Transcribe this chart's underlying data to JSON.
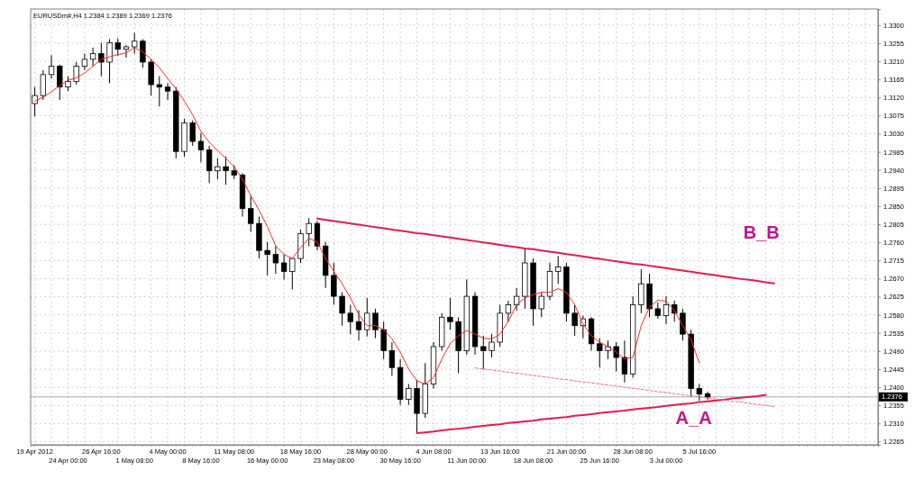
{
  "chart_data": {
    "type": "candlestick",
    "title": "EURUSDm#,H4  1.2384 1.2389 1.2369 1.2376",
    "categories": [
      "19 Apr 2012",
      null,
      null,
      null,
      "24 Apr 00:00",
      null,
      null,
      null,
      "26 Apr 16:00",
      null,
      null,
      null,
      "1 May 08:00",
      null,
      null,
      null,
      "4 May 00:00",
      null,
      null,
      null,
      "8 May 16:00",
      null,
      null,
      null,
      "11 May 08:00",
      null,
      null,
      null,
      "16 May 00:00",
      null,
      null,
      null,
      "18 May 16:00",
      null,
      null,
      null,
      "23 May 08:00",
      null,
      null,
      null,
      "28 May 00:00",
      null,
      null,
      null,
      "30 May 16:00",
      null,
      null,
      null,
      "4 Jun 08:00",
      null,
      null,
      null,
      "11 Jun 00:00",
      null,
      null,
      null,
      "13 Jun 16:00",
      null,
      null,
      null,
      "18 Jun 08:00",
      null,
      null,
      null,
      "21 Jun 00:00",
      null,
      null,
      null,
      "25 Jun 16:00",
      null,
      null,
      null,
      "28 Jun 08:00",
      null,
      null,
      null,
      "3 Jul 00:00",
      null,
      null,
      null,
      "5 Jul 16:00",
      null,
      null,
      null,
      null,
      null,
      null,
      null,
      null,
      null,
      null,
      null,
      null,
      null,
      null,
      null,
      null,
      null,
      null,
      null,
      null,
      null
    ],
    "ohlc": [
      [
        1.3105,
        1.3146,
        1.3073,
        1.3125
      ],
      [
        1.3125,
        1.3188,
        1.3114,
        1.3177
      ],
      [
        1.3177,
        1.3225,
        1.3167,
        1.3198
      ],
      [
        1.3198,
        1.3202,
        1.3114,
        1.3146
      ],
      [
        1.3146,
        1.3173,
        1.3136,
        1.316
      ],
      [
        1.316,
        1.3208,
        1.3152,
        1.3198
      ],
      [
        1.3198,
        1.3229,
        1.3188,
        1.3215
      ],
      [
        1.3215,
        1.3244,
        1.3198,
        1.3229
      ],
      [
        1.3229,
        1.3256,
        1.3173,
        1.3208
      ],
      [
        1.3208,
        1.3265,
        1.3156,
        1.3256
      ],
      [
        1.3256,
        1.3267,
        1.3223,
        1.324
      ],
      [
        1.324,
        1.325,
        1.3219,
        1.3246
      ],
      [
        1.3246,
        1.3281,
        1.3229,
        1.326
      ],
      [
        1.326,
        1.3265,
        1.3194,
        1.3208
      ],
      [
        1.3208,
        1.3215,
        1.3125,
        1.3152
      ],
      [
        1.3152,
        1.3173,
        1.3098,
        1.3146
      ],
      [
        1.3146,
        1.3156,
        1.3114,
        1.3136
      ],
      [
        1.3136,
        1.3146,
        1.2969,
        1.2986
      ],
      [
        1.2986,
        1.3067,
        1.2973,
        1.3057
      ],
      [
        1.3057,
        1.3063,
        1.3,
        1.3011
      ],
      [
        1.3011,
        1.3032,
        1.2959,
        1.299
      ],
      [
        1.299,
        1.3,
        1.2907,
        1.2938
      ],
      [
        1.2938,
        1.2969,
        1.2917,
        1.2948
      ],
      [
        1.2948,
        1.2973,
        1.2903,
        1.2938
      ],
      [
        1.2938,
        1.2952,
        1.2917,
        1.2927
      ],
      [
        1.2927,
        1.2932,
        1.2824,
        1.2844
      ],
      [
        1.2844,
        1.2876,
        1.2786,
        1.2807
      ],
      [
        1.2807,
        1.2824,
        1.272,
        1.274
      ],
      [
        1.274,
        1.2761,
        1.2678,
        1.273
      ],
      [
        1.273,
        1.2751,
        1.2682,
        1.2709
      ],
      [
        1.2709,
        1.273,
        1.2668,
        1.2688
      ],
      [
        1.2688,
        1.272,
        1.2643,
        1.272
      ],
      [
        1.272,
        1.2792,
        1.2709,
        1.2782
      ],
      [
        1.2782,
        1.282,
        1.2751,
        1.2807
      ],
      [
        1.2807,
        1.2813,
        1.274,
        1.2751
      ],
      [
        1.2751,
        1.2761,
        1.2647,
        1.2678
      ],
      [
        1.2678,
        1.2709,
        1.2605,
        1.2626
      ],
      [
        1.2626,
        1.2636,
        1.2553,
        1.2584
      ],
      [
        1.2584,
        1.2605,
        1.2532,
        1.2563
      ],
      [
        1.2563,
        1.2591,
        1.2516,
        1.2543
      ],
      [
        1.2543,
        1.2622,
        1.2526,
        1.2584
      ],
      [
        1.2584,
        1.2595,
        1.2522,
        1.2543
      ],
      [
        1.2543,
        1.2563,
        1.247,
        1.2491
      ],
      [
        1.2491,
        1.2512,
        1.2428,
        1.2449
      ],
      [
        1.2449,
        1.247,
        1.2356,
        1.237
      ],
      [
        1.237,
        1.2408,
        1.2356,
        1.2397
      ],
      [
        1.2397,
        1.2418,
        1.2287,
        1.2335
      ],
      [
        1.2335,
        1.246,
        1.2324,
        1.2408
      ],
      [
        1.2408,
        1.2512,
        1.2397,
        1.2501
      ],
      [
        1.2501,
        1.2584,
        1.2491,
        1.2574
      ],
      [
        1.2574,
        1.2622,
        1.2543,
        1.2563
      ],
      [
        1.2563,
        1.2574,
        1.2435,
        1.2491
      ],
      [
        1.2491,
        1.2668,
        1.2481,
        1.2626
      ],
      [
        1.2626,
        1.2636,
        1.2481,
        1.2501
      ],
      [
        1.2501,
        1.2528,
        1.2445,
        1.2491
      ],
      [
        1.2491,
        1.2532,
        1.2474,
        1.2512
      ],
      [
        1.2512,
        1.2605,
        1.2501,
        1.2584
      ],
      [
        1.2584,
        1.2615,
        1.2563,
        1.2605
      ],
      [
        1.2605,
        1.2647,
        1.2591,
        1.2626
      ],
      [
        1.2626,
        1.2747,
        1.2595,
        1.2709
      ],
      [
        1.2709,
        1.272,
        1.2553,
        1.2595
      ],
      [
        1.2595,
        1.2636,
        1.2574,
        1.2626
      ],
      [
        1.2626,
        1.2709,
        1.2616,
        1.2688
      ],
      [
        1.2688,
        1.2726,
        1.2657,
        1.2699
      ],
      [
        1.2699,
        1.2709,
        1.2563,
        1.2584
      ],
      [
        1.2584,
        1.2605,
        1.2528,
        1.2553
      ],
      [
        1.2553,
        1.2578,
        1.2522,
        1.257
      ],
      [
        1.257,
        1.2574,
        1.2491,
        1.2508
      ],
      [
        1.2508,
        1.2522,
        1.2449,
        1.2491
      ],
      [
        1.2491,
        1.2516,
        1.247,
        1.2501
      ],
      [
        1.2501,
        1.2512,
        1.2439,
        1.2474
      ],
      [
        1.2474,
        1.2516,
        1.2412,
        1.2433
      ],
      [
        1.2433,
        1.2626,
        1.2424,
        1.2605
      ],
      [
        1.2605,
        1.2693,
        1.2584,
        1.2657
      ],
      [
        1.2657,
        1.2682,
        1.2574,
        1.2595
      ],
      [
        1.2595,
        1.2611,
        1.257,
        1.2578
      ],
      [
        1.2578,
        1.2626,
        1.2557,
        1.2605
      ],
      [
        1.2605,
        1.2615,
        1.2563,
        1.2584
      ],
      [
        1.2584,
        1.2595,
        1.2516,
        1.2532
      ],
      [
        1.2532,
        1.2543,
        1.2376,
        1.2397
      ],
      [
        1.2397,
        1.2408,
        1.2366,
        1.2383
      ],
      [
        1.2384,
        1.2389,
        1.2369,
        1.2376
      ],
      null,
      null,
      null,
      null,
      null,
      null,
      null,
      null,
      null,
      null,
      null,
      null,
      null,
      null,
      null,
      null,
      null,
      null,
      null,
      null
    ],
    "series": [
      {
        "type": "line",
        "color": "#ff2a2a",
        "values": [
          1.3111,
          1.3121,
          1.3134,
          1.315,
          1.3163,
          1.3169,
          1.3181,
          1.3198,
          1.3215,
          1.3221,
          1.3227,
          1.3231,
          1.3244,
          1.3233,
          1.3215,
          1.3194,
          1.3167,
          1.3142,
          1.3111,
          1.3077,
          1.3036,
          1.3009,
          1.2988,
          1.2969,
          1.2948,
          1.2917,
          1.2876,
          1.284,
          1.2799,
          1.2751,
          1.273,
          1.272,
          1.2747,
          1.277,
          1.2761,
          1.272,
          1.2688,
          1.2657,
          1.2622,
          1.258,
          1.2553,
          1.2553,
          1.2543,
          1.252,
          1.2487,
          1.2445,
          1.2416,
          1.2408,
          1.2424,
          1.247,
          1.2508,
          1.2528,
          1.2541,
          1.2532,
          1.2522,
          1.252,
          1.2532,
          1.2564,
          1.2605,
          1.2622,
          1.263,
          1.2636,
          1.2636,
          1.2645,
          1.2636,
          1.2605,
          1.2557,
          1.2528,
          1.2512,
          1.2501,
          1.2487,
          1.247,
          1.2474,
          1.2553,
          1.2599,
          1.2616,
          1.2614,
          1.2591,
          1.2553,
          1.2518,
          1.246,
          null,
          null,
          null,
          null,
          null,
          null,
          null,
          null,
          null,
          null,
          null,
          null,
          null,
          null,
          null,
          null,
          null,
          null,
          null,
          null,
          null
        ]
      },
      {
        "type": "line",
        "color": "#e8194a",
        "values": [
          null,
          null,
          null,
          null,
          null,
          null,
          null,
          null,
          null,
          null,
          null,
          null,
          null,
          null,
          null,
          null,
          null,
          null,
          null,
          null,
          null,
          null,
          null,
          null,
          null,
          null,
          null,
          null,
          null,
          null,
          null,
          null,
          null,
          null,
          1.2819,
          1.2816,
          1.2813,
          1.281,
          1.2807,
          1.2804,
          1.2801,
          1.2798,
          1.2795,
          1.2792,
          1.2789,
          1.2786,
          1.2783,
          1.2781,
          1.2778,
          1.2775,
          1.2772,
          1.2769,
          1.2766,
          1.2763,
          1.276,
          1.2757,
          1.2754,
          1.2751,
          1.2748,
          1.2745,
          1.2743,
          1.274,
          1.2737,
          1.2734,
          1.2731,
          1.2728,
          1.2725,
          1.2722,
          1.2719,
          1.2716,
          1.2713,
          1.271,
          1.2707,
          1.2705,
          1.2702,
          1.2699,
          1.2696,
          1.2693,
          1.269,
          1.2687,
          1.2684,
          1.2681,
          1.2678,
          1.2675,
          1.2672,
          1.2669,
          1.2667,
          1.2664,
          1.2661,
          1.2658,
          null,
          null,
          null,
          null,
          null,
          null,
          null,
          null,
          null,
          null,
          null,
          null
        ]
      },
      {
        "type": "line",
        "color": "#e8194a",
        "values": [
          null,
          null,
          null,
          null,
          null,
          null,
          null,
          null,
          null,
          null,
          null,
          null,
          null,
          null,
          null,
          null,
          null,
          null,
          null,
          null,
          null,
          null,
          null,
          null,
          null,
          null,
          null,
          null,
          null,
          null,
          null,
          null,
          null,
          null,
          null,
          null,
          null,
          null,
          null,
          null,
          null,
          null,
          null,
          null,
          null,
          null,
          1.2286,
          1.2288,
          1.229,
          1.2293,
          1.2295,
          1.2297,
          1.2299,
          1.2302,
          1.2304,
          1.2306,
          1.2308,
          1.2311,
          1.2313,
          1.2315,
          1.2317,
          1.232,
          1.2322,
          1.2324,
          1.2326,
          1.2329,
          1.2331,
          1.2333,
          1.2336,
          1.2338,
          1.234,
          1.2342,
          1.2345,
          1.2347,
          1.2349,
          1.2351,
          1.2354,
          1.2356,
          1.2358,
          1.236,
          1.2363,
          1.2365,
          1.2367,
          1.2369,
          1.2372,
          1.2374,
          1.2376,
          1.2378,
          1.2381,
          null,
          null,
          null,
          null,
          null,
          null,
          null,
          null,
          null,
          null,
          null,
          null,
          null
        ]
      },
      {
        "type": "line",
        "color": "#f07090",
        "line_style": "dashed",
        "values": [
          null,
          null,
          null,
          null,
          null,
          null,
          null,
          null,
          null,
          null,
          null,
          null,
          null,
          null,
          null,
          null,
          null,
          null,
          null,
          null,
          null,
          null,
          null,
          null,
          null,
          null,
          null,
          null,
          null,
          null,
          null,
          null,
          null,
          null,
          null,
          null,
          null,
          null,
          null,
          null,
          null,
          null,
          null,
          null,
          null,
          null,
          null,
          null,
          null,
          null,
          null,
          null,
          null,
          1.2448,
          1.2445,
          1.2443,
          1.244,
          1.2437,
          1.2435,
          1.2432,
          1.2429,
          1.2427,
          1.2424,
          1.2421,
          1.2419,
          1.2416,
          1.2413,
          1.2411,
          1.2408,
          1.2405,
          1.2403,
          1.24,
          1.2397,
          1.2395,
          1.2392,
          1.2389,
          1.2387,
          1.2384,
          1.2381,
          1.2379,
          1.2376,
          1.2373,
          1.2371,
          1.2368,
          1.2365,
          1.2363,
          1.236,
          1.2357,
          1.2355,
          1.2352,
          null,
          null,
          null,
          null,
          null,
          null,
          null,
          null,
          null,
          null,
          null,
          null
        ]
      }
    ],
    "annotations": [
      "B_B",
      "A_A"
    ],
    "ref_lines": [
      {
        "axis": "y",
        "value": 1.2376,
        "label": "1.2376",
        "color": "#a0a0a0"
      }
    ],
    "ylim": [
      1.2257,
      1.334
    ],
    "yticks": [
      {
        "value": 1.33,
        "label": "1.3300"
      },
      {
        "value": 1.3255,
        "label": "1.3255"
      },
      {
        "value": 1.321,
        "label": "1.3210"
      },
      {
        "value": 1.3165,
        "label": "1.3165"
      },
      {
        "value": 1.312,
        "label": "1.3120"
      },
      {
        "value": 1.3075,
        "label": "1.3075"
      },
      {
        "value": 1.303,
        "label": "1.3030"
      },
      {
        "value": 1.2985,
        "label": "1.2985"
      },
      {
        "value": 1.294,
        "label": "1.2940"
      },
      {
        "value": 1.2895,
        "label": "1.2895"
      },
      {
        "value": 1.285,
        "label": "1.2850"
      },
      {
        "value": 1.2805,
        "label": "1.2805"
      },
      {
        "value": 1.276,
        "label": "1.2760"
      },
      {
        "value": 1.2715,
        "label": "1.2715"
      },
      {
        "value": 1.267,
        "label": "1.2670"
      },
      {
        "value": 1.2625,
        "label": "1.2625"
      },
      {
        "value": 1.258,
        "label": "1.2580"
      },
      {
        "value": 1.2535,
        "label": "1.2535"
      },
      {
        "value": 1.249,
        "label": "1.2490"
      },
      {
        "value": 1.2445,
        "label": "1.2445"
      },
      {
        "value": 1.24,
        "label": "1.2400"
      },
      {
        "value": 1.2355,
        "label": "1.2355"
      },
      {
        "value": 1.231,
        "label": "1.2310"
      },
      {
        "value": 1.2265,
        "label": "1.2265"
      }
    ],
    "grid": true
  }
}
